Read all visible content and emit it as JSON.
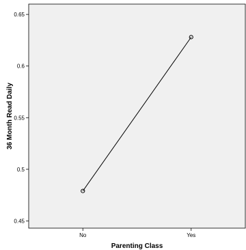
{
  "chart_data": {
    "type": "line",
    "title": "",
    "xlabel": "Parenting Class",
    "ylabel": "36 Month Read Daily",
    "categories": [
      "No",
      "Yes"
    ],
    "series": [
      {
        "values": [
          0.479,
          0.628
        ],
        "marker": "open-circle",
        "color": "#000000"
      }
    ],
    "yticks": [
      0.45,
      0.5,
      0.55,
      0.6,
      0.65
    ],
    "ytick_labels": [
      "0.45",
      "0.5",
      "0.55",
      "0.6",
      "0.65"
    ],
    "ylim": [
      0.443,
      0.66
    ],
    "grid": false,
    "plot_background": "#f0f0f0",
    "legend": "none"
  }
}
